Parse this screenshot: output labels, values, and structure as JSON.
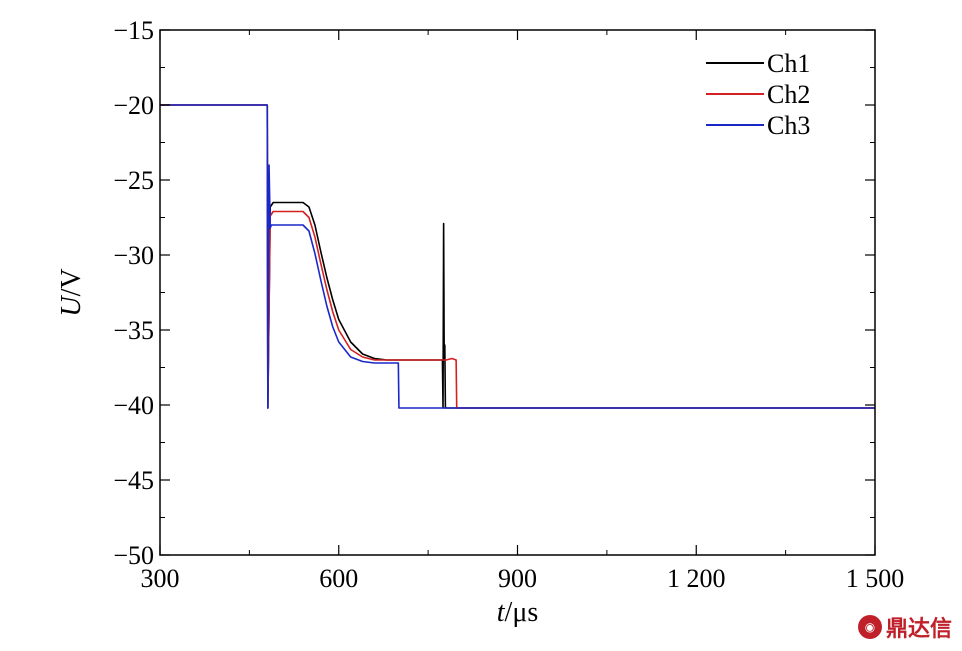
{
  "chart_data": {
    "type": "line",
    "xlabel_italic": "t",
    "xlabel_unit": "/μs",
    "ylabel_italic": "U",
    "ylabel_unit": "/V",
    "xlim": [
      300,
      1500
    ],
    "ylim": [
      -50,
      -15
    ],
    "xticks": [
      300,
      600,
      900,
      1200,
      1500
    ],
    "xtick_labels": [
      "300",
      "600",
      "900",
      "1 200",
      "1 500"
    ],
    "yticks": [
      -15,
      -20,
      -25,
      -30,
      -35,
      -40,
      -45,
      -50
    ],
    "ytick_labels": [
      "−15",
      "−20",
      "−25",
      "−30",
      "−35",
      "−40",
      "−45",
      "−50"
    ],
    "legend_position": "top-right",
    "series": [
      {
        "name": "Ch1",
        "color": "#000000",
        "x": [
          300,
          480,
          481,
          485,
          490,
          500,
          520,
          540,
          550,
          560,
          570,
          580,
          590,
          600,
          620,
          640,
          660,
          680,
          700,
          720,
          740,
          760,
          774,
          775,
          776,
          777,
          778,
          779,
          780,
          1500
        ],
        "y": [
          -20,
          -20,
          -40.2,
          -26.8,
          -26.5,
          -26.5,
          -26.5,
          -26.5,
          -26.8,
          -28,
          -29.8,
          -31.5,
          -33,
          -34.3,
          -35.8,
          -36.6,
          -36.9,
          -37.0,
          -37.0,
          -37.0,
          -37.0,
          -37.0,
          -37.0,
          -40.2,
          -27.9,
          -37.0,
          -36.0,
          -40.2,
          -40.2,
          -40.2
        ]
      },
      {
        "name": "Ch2",
        "color": "#d42020",
        "x": [
          300,
          480,
          481,
          485,
          490,
          500,
          520,
          540,
          550,
          560,
          570,
          580,
          590,
          600,
          620,
          640,
          660,
          680,
          700,
          720,
          740,
          760,
          780,
          790,
          797,
          798,
          800,
          1500
        ],
        "y": [
          -20,
          -20,
          -40.2,
          -27.4,
          -27.1,
          -27.1,
          -27.1,
          -27.1,
          -27.5,
          -28.8,
          -30.6,
          -32.3,
          -33.8,
          -35.0,
          -36.3,
          -36.8,
          -37.0,
          -37.0,
          -37.0,
          -37.0,
          -37.0,
          -37.0,
          -37.0,
          -36.9,
          -37.0,
          -40.2,
          -40.2,
          -40.2
        ]
      },
      {
        "name": "Ch3",
        "color": "#1a28c8",
        "x": [
          300,
          480,
          481,
          483,
          485,
          487,
          490,
          500,
          520,
          540,
          550,
          560,
          570,
          580,
          590,
          600,
          620,
          640,
          660,
          680,
          700,
          701,
          1500
        ],
        "y": [
          -20,
          -20,
          -40.2,
          -24.0,
          -28.2,
          -28.0,
          -28.0,
          -28.0,
          -28.0,
          -28.0,
          -28.4,
          -29.9,
          -31.7,
          -33.4,
          -34.8,
          -35.8,
          -36.8,
          -37.1,
          -37.2,
          -37.2,
          -37.2,
          -40.2,
          -40.2
        ]
      }
    ]
  },
  "watermark": {
    "logo_icon": "dingdaxin-logo-icon",
    "text": "鼎达信",
    "color": "#c0202a"
  }
}
